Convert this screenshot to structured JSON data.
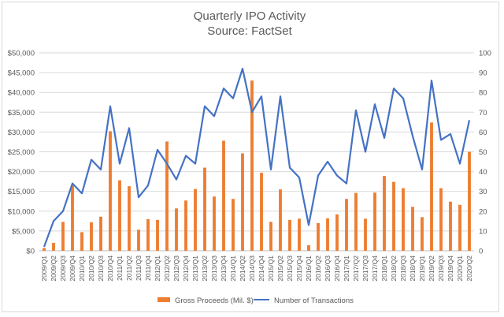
{
  "chart_data": {
    "type": "bar",
    "title": "Quarterly IPO Activity",
    "subtitle": "Source: FactSet",
    "categories": [
      "2009/Q1",
      "2009/Q2",
      "2009/Q3",
      "2009/Q4",
      "2010/Q1",
      "2010/Q2",
      "2010/Q3",
      "2010/Q4",
      "2011/Q1",
      "2011/Q2",
      "2011/Q3",
      "2011/Q4",
      "2012/Q1",
      "2012/Q2",
      "2012/Q3",
      "2012/Q4",
      "2013/Q1",
      "2013/Q2",
      "2013/Q3",
      "2013/Q4",
      "2014/Q1",
      "2014/Q2",
      "2014/Q3",
      "2014/Q4",
      "2015/Q1",
      "2015/Q2",
      "2015/Q3",
      "2015/Q4",
      "2016/Q1",
      "2016/Q2",
      "2016/Q3",
      "2016/Q4",
      "2017/Q1",
      "2017/Q2",
      "2017/Q3",
      "2017/Q4",
      "2018/Q1",
      "2018/Q2",
      "2018/Q3",
      "2018/Q4",
      "2019/Q1",
      "2019/Q2",
      "2019/Q3",
      "2019/Q4",
      "2020/Q1",
      "2020/Q2"
    ],
    "series": [
      {
        "name": "Gross Proceeds (Mil. $)",
        "kind": "bar",
        "axis": "left",
        "color": "#ED7D31",
        "values": [
          700,
          2000,
          7300,
          16500,
          4700,
          7200,
          8600,
          30200,
          17800,
          16300,
          5300,
          8000,
          7800,
          27600,
          10700,
          12700,
          15600,
          21000,
          13700,
          27800,
          13100,
          24600,
          43000,
          19700,
          7300,
          15500,
          7800,
          8100,
          1400,
          7000,
          8200,
          9200,
          13100,
          14600,
          8100,
          14700,
          18900,
          17400,
          15800,
          11100,
          8500,
          32400,
          15800,
          12400,
          11600,
          25000
        ]
      },
      {
        "name": "Number of Transactions",
        "kind": "line",
        "axis": "right",
        "color": "#4472C4",
        "values": [
          2,
          15,
          20,
          34,
          29,
          46,
          41,
          73,
          44,
          62,
          27,
          33,
          51,
          44,
          36,
          48,
          44,
          73,
          68,
          82,
          77,
          92,
          70,
          78,
          41,
          78,
          42,
          37,
          13,
          38,
          45,
          38,
          34,
          71,
          50,
          74,
          57,
          82,
          77,
          58,
          41,
          86,
          56,
          59,
          44,
          66
        ]
      }
    ],
    "y_left": {
      "min": 0,
      "max": 50000,
      "step": 5000,
      "tick_labels": [
        "$0",
        "$5,000",
        "$10,000",
        "$15,000",
        "$20,000",
        "$25,000",
        "$30,000",
        "$35,000",
        "$40,000",
        "$45,000",
        "$50,000"
      ]
    },
    "y_right": {
      "min": 0,
      "max": 100,
      "step": 10,
      "tick_labels": [
        "0",
        "10",
        "20",
        "30",
        "40",
        "50",
        "60",
        "70",
        "80",
        "90",
        "100"
      ]
    },
    "grid": true,
    "legend_position": "bottom"
  }
}
